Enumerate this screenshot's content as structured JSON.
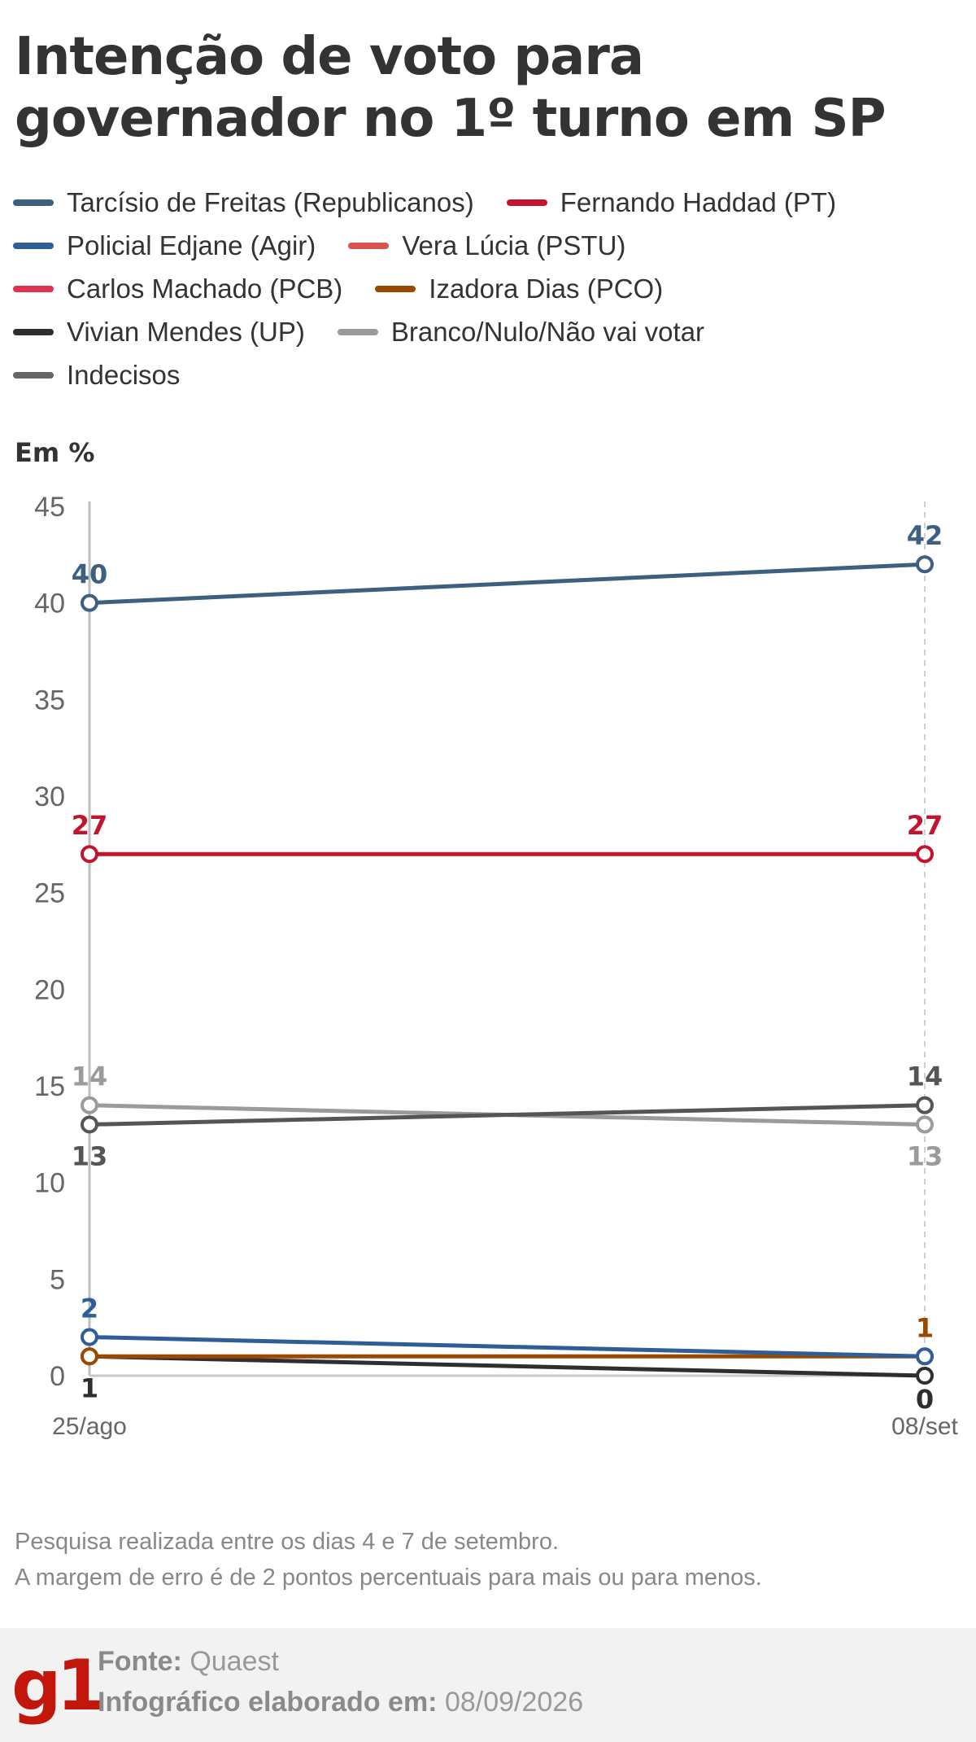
{
  "title": "Intenção de voto para governador no 1º turno em SP",
  "legend": [
    [
      {
        "label": "Tarcísio de Freitas (Republicanos)",
        "color": "#3d5f80"
      },
      {
        "label": "Fernando Haddad (PT)",
        "color": "#c0142f"
      }
    ],
    [
      {
        "label": "Policial Edjane (Agir)",
        "color": "#2f5d96"
      },
      {
        "label": "Vera Lúcia (PSTU)",
        "color": "#d9534f"
      }
    ],
    [
      {
        "label": "Carlos Machado (PCB)",
        "color": "#e0324f"
      },
      {
        "label": "Izadora Dias (PCO)",
        "color": "#9a4a00"
      }
    ],
    [
      {
        "label": "Vivian Mendes (UP)",
        "color": "#2e2e2e"
      },
      {
        "label": "Branco/Nulo/Não vai votar",
        "color": "#9b9b9b"
      }
    ],
    [
      {
        "label": "Indecisos",
        "color": "#666666"
      }
    ]
  ],
  "chart_data": {
    "type": "line",
    "ylabel": "Em %",
    "x": [
      "25/ago",
      "08/set"
    ],
    "yticks": [
      0,
      5,
      10,
      15,
      20,
      25,
      30,
      35,
      40,
      45
    ],
    "ylim": [
      0,
      45
    ],
    "series": [
      {
        "name": "Tarcísio de Freitas (Republicanos)",
        "color": "#3d5f80",
        "values": [
          40,
          42
        ],
        "labels": [
          "40",
          "42"
        ]
      },
      {
        "name": "Fernando Haddad (PT)",
        "color": "#c0142f",
        "values": [
          27,
          27
        ],
        "labels": [
          "27",
          "27"
        ]
      },
      {
        "name": "Branco/Nulo/Não vai votar",
        "color": "#9b9b9b",
        "values": [
          14,
          13
        ],
        "labels": [
          "14",
          "13"
        ]
      },
      {
        "name": "Indecisos",
        "color": "#555555",
        "values": [
          13,
          14
        ],
        "labels": [
          "13",
          "14"
        ]
      },
      {
        "name": "Vivian Mendes (UP)",
        "color": "#2e2e2e",
        "values": [
          1,
          0
        ],
        "labels": [
          "1",
          "0"
        ]
      },
      {
        "name": "Izadora Dias (PCO)",
        "color": "#9a4a00",
        "values": [
          1,
          1
        ],
        "labels": [
          "",
          "1"
        ]
      },
      {
        "name": "Policial Edjane (Agir)",
        "color": "#2f5d96",
        "values": [
          2,
          1
        ],
        "labels": [
          "2",
          ""
        ]
      }
    ]
  },
  "notes": [
    "Pesquisa realizada entre os dias 4 e 7 de setembro.",
    "A margem de erro é de 2 pontos percentuais para mais ou para menos."
  ],
  "footer": {
    "logo": "g1",
    "source_label": "Fonte:",
    "source": "Quaest",
    "date_label": "Infográfico elaborado em:",
    "date": "08/09/2026"
  }
}
